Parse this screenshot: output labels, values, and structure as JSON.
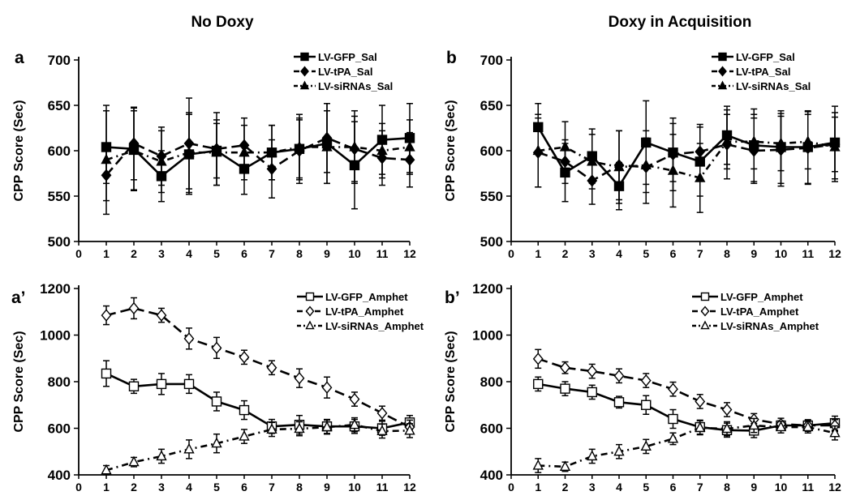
{
  "figure": {
    "column_titles": [
      "No Doxy",
      "Doxy in Acquisition"
    ]
  },
  "chart_data": [
    {
      "panel": "a",
      "type": "line",
      "ylabel": "CPP Score (Sec)",
      "xlabel": "",
      "x": [
        1,
        2,
        3,
        4,
        5,
        6,
        7,
        8,
        9,
        10,
        11,
        12
      ],
      "xlim": [
        0,
        12
      ],
      "ylim": [
        500,
        700
      ],
      "yticks": [
        500,
        550,
        600,
        650,
        700
      ],
      "legend_position": "top-right",
      "series": [
        {
          "name": "LV-GFP_Sal",
          "marker": "square-filled",
          "dash": "solid",
          "values": [
            604,
            602,
            572,
            596,
            600,
            580,
            598,
            602,
            608,
            584,
            612,
            614
          ],
          "errors": [
            40,
            45,
            28,
            44,
            30,
            28,
            30,
            32,
            44,
            48,
            38,
            38
          ]
        },
        {
          "name": "LV-tPA_Sal",
          "marker": "diamond-filled",
          "dash": "dash",
          "values": [
            573,
            608,
            594,
            608,
            602,
            606,
            580,
            600,
            614,
            602,
            592,
            590
          ],
          "errors": [
            28,
            40,
            32,
            50,
            40,
            30,
            32,
            36,
            38,
            36,
            30,
            30
          ]
        },
        {
          "name": "LV-siRNAs_Sal",
          "marker": "triangle-filled",
          "dash": "dashdot",
          "values": [
            590,
            600,
            588,
            598,
            598,
            598,
            598,
            604,
            604,
            604,
            600,
            604
          ],
          "errors": [
            60,
            44,
            34,
            44,
            36,
            30,
            30,
            36,
            40,
            40,
            30,
            30
          ]
        }
      ]
    },
    {
      "panel": "b",
      "type": "line",
      "ylabel": "CPP Score (Sec)",
      "xlabel": "",
      "x": [
        1,
        2,
        3,
        4,
        5,
        6,
        7,
        8,
        9,
        10,
        11,
        12
      ],
      "xlim": [
        0,
        12
      ],
      "ylim": [
        500,
        700
      ],
      "yticks": [
        500,
        550,
        600,
        650,
        700
      ],
      "legend_position": "top-right",
      "series": [
        {
          "name": "LV-GFP_Sal",
          "marker": "square-filled",
          "dash": "solid",
          "values": [
            626,
            576,
            594,
            561,
            609,
            598,
            588,
            617,
            606,
            604,
            604,
            609
          ],
          "errors": [
            26,
            32,
            30,
            26,
            46,
            32,
            38,
            32,
            40,
            40,
            40,
            40
          ]
        },
        {
          "name": "LV-tPA_Sal",
          "marker": "diamond-filled",
          "dash": "dash",
          "values": [
            598,
            588,
            567,
            584,
            582,
            596,
            599,
            607,
            600,
            601,
            603,
            607
          ],
          "errors": [
            38,
            24,
            26,
            38,
            40,
            40,
            30,
            38,
            36,
            40,
            40,
            30
          ]
        },
        {
          "name": "LV-siRNAs_Sal",
          "marker": "triangle-filled",
          "dash": "dashdot",
          "values": [
            600,
            604,
            588,
            582,
            584,
            578,
            570,
            610,
            610,
            608,
            610,
            604
          ],
          "errors": [
            40,
            28,
            30,
            40,
            30,
            40,
            38,
            30,
            30,
            30,
            30,
            38
          ]
        }
      ]
    },
    {
      "panel": "a’",
      "type": "line",
      "ylabel": "CPP Score (Sec)",
      "xlabel": "",
      "x": [
        1,
        2,
        3,
        4,
        5,
        6,
        7,
        8,
        9,
        10,
        11,
        12
      ],
      "xlim": [
        0,
        12
      ],
      "ylim": [
        400,
        1200
      ],
      "yticks": [
        400,
        600,
        800,
        1000,
        1200
      ],
      "legend_position": "top-right",
      "series": [
        {
          "name": "LV-GFP_Amphet",
          "marker": "square-open",
          "dash": "solid",
          "values": [
            835,
            780,
            790,
            790,
            715,
            678,
            608,
            615,
            608,
            608,
            600,
            625
          ],
          "errors": [
            55,
            30,
            45,
            40,
            40,
            40,
            30,
            40,
            30,
            30,
            30,
            30
          ]
        },
        {
          "name": "LV-tPA_Amphet",
          "marker": "diamond-open",
          "dash": "dash",
          "values": [
            1085,
            1115,
            1085,
            985,
            945,
            905,
            860,
            815,
            775,
            725,
            665,
            605
          ],
          "errors": [
            40,
            45,
            30,
            45,
            45,
            30,
            30,
            40,
            45,
            30,
            30,
            30
          ]
        },
        {
          "name": "LV-siRNAs_Amphet",
          "marker": "triangle-open",
          "dash": "dashdot",
          "values": [
            420,
            455,
            480,
            510,
            535,
            565,
            595,
            598,
            605,
            615,
            588,
            590
          ],
          "errors": [
            20,
            20,
            30,
            40,
            40,
            30,
            30,
            30,
            30,
            30,
            30,
            30
          ]
        }
      ]
    },
    {
      "panel": "b’",
      "type": "line",
      "ylabel": "CPP Score (Sec)",
      "xlabel": "",
      "x": [
        1,
        2,
        3,
        4,
        5,
        6,
        7,
        8,
        9,
        10,
        11,
        12
      ],
      "xlim": [
        0,
        12
      ],
      "ylim": [
        400,
        1200
      ],
      "yticks": [
        400,
        600,
        800,
        1000,
        1200
      ],
      "legend_position": "top-right",
      "series": [
        {
          "name": "LV-GFP_Amphet",
          "marker": "square-open",
          "dash": "solid",
          "values": [
            790,
            770,
            755,
            712,
            700,
            640,
            605,
            592,
            590,
            612,
            612,
            622
          ],
          "errors": [
            30,
            30,
            30,
            25,
            40,
            40,
            30,
            30,
            30,
            20,
            20,
            30
          ]
        },
        {
          "name": "LV-tPA_Amphet",
          "marker": "diamond-open",
          "dash": "dash",
          "values": [
            898,
            860,
            845,
            825,
            805,
            768,
            715,
            680,
            638,
            618,
            612,
            612
          ],
          "errors": [
            40,
            25,
            30,
            30,
            30,
            30,
            30,
            30,
            25,
            25,
            25,
            25
          ]
        },
        {
          "name": "LV-siRNAs_Amphet",
          "marker": "triangle-open",
          "dash": "dashdot",
          "values": [
            440,
            435,
            480,
            500,
            522,
            555,
            602,
            598,
            612,
            605,
            605,
            580
          ],
          "errors": [
            30,
            20,
            30,
            30,
            30,
            25,
            30,
            30,
            30,
            25,
            25,
            30
          ]
        }
      ]
    }
  ]
}
